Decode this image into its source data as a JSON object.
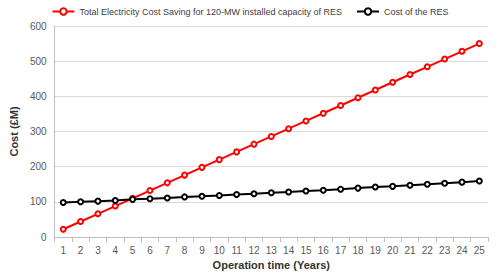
{
  "chart_data": {
    "type": "line",
    "x_label": "Operation time (Years)",
    "y_label": "Cost (£M)",
    "categories": [
      "1",
      "2",
      "3",
      "4",
      "5",
      "6",
      "7",
      "8",
      "9",
      "10",
      "11",
      "12",
      "13",
      "14",
      "15",
      "16",
      "17",
      "18",
      "19",
      "20",
      "21",
      "22",
      "23",
      "24",
      "25"
    ],
    "series": [
      {
        "name": "Total Electricity Cost Saving for 120-MW installed capacity of RES",
        "color": "#ff0000",
        "marker": "circle",
        "line_style": "solid",
        "values": [
          22,
          44,
          66,
          88,
          110,
          132,
          154,
          176,
          198,
          220,
          242,
          264,
          286,
          308,
          330,
          352,
          374,
          396,
          418,
          440,
          462,
          484,
          506,
          528,
          550
        ]
      },
      {
        "name": "Cost of the RES",
        "color": "#000000",
        "marker": "circle",
        "line_style": "solid",
        "values": [
          98,
          100,
          102,
          104,
          107,
          109,
          111,
          114,
          116,
          118,
          121,
          123,
          126,
          128,
          131,
          133,
          136,
          139,
          142,
          144,
          147,
          150,
          153,
          156,
          159
        ]
      }
    ],
    "ylim": [
      0,
      600
    ],
    "yticks": [
      0,
      100,
      200,
      300,
      400,
      500,
      600
    ],
    "grid": true,
    "legend": "top"
  }
}
